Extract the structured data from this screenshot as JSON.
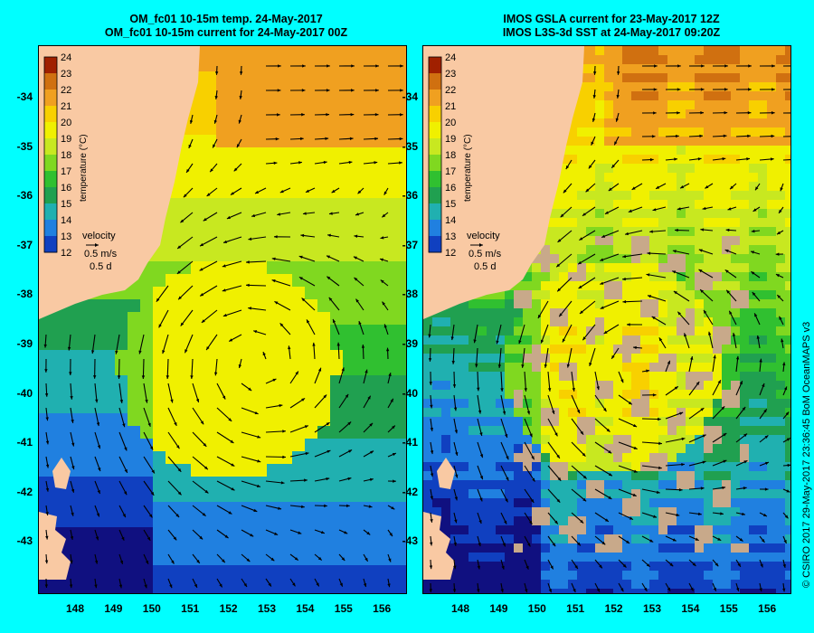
{
  "left_panel": {
    "title_line1": "OM_fc01 10-15m temp. 24-May-2017",
    "title_line2": "OM_fc01 10-15m current for 24-May-2017 00Z"
  },
  "right_panel": {
    "title_line1": "IMOS GSLA current for 23-May-2017 12Z",
    "title_line2": "IMOS L3S-3d SST at 24-May-2017 09:20Z"
  },
  "colorbar": {
    "ticks": [
      "24",
      "23",
      "22",
      "21",
      "20",
      "19",
      "18",
      "17",
      "16",
      "15",
      "14",
      "13",
      "12"
    ],
    "label": "temperature (°C)"
  },
  "velocity_legend": {
    "title": "velocity",
    "speed": "0.5 m/s",
    "duration": "0.5 d"
  },
  "y_axis_labels": [
    "-34",
    "-35",
    "-36",
    "-37",
    "-38",
    "-39",
    "-40",
    "-41",
    "-42",
    "-43"
  ],
  "x_axis_labels": [
    "148",
    "149",
    "150",
    "151",
    "152",
    "153",
    "154",
    "155",
    "156"
  ],
  "credit": "© CSIRO 2017   29-May-2017 23:36:45 BoM OceanMAPS v3",
  "colors": {
    "background": "#00ffff",
    "land": "#f9c9a3",
    "no_data": "#c8a98a",
    "arrow": "#000000"
  }
}
